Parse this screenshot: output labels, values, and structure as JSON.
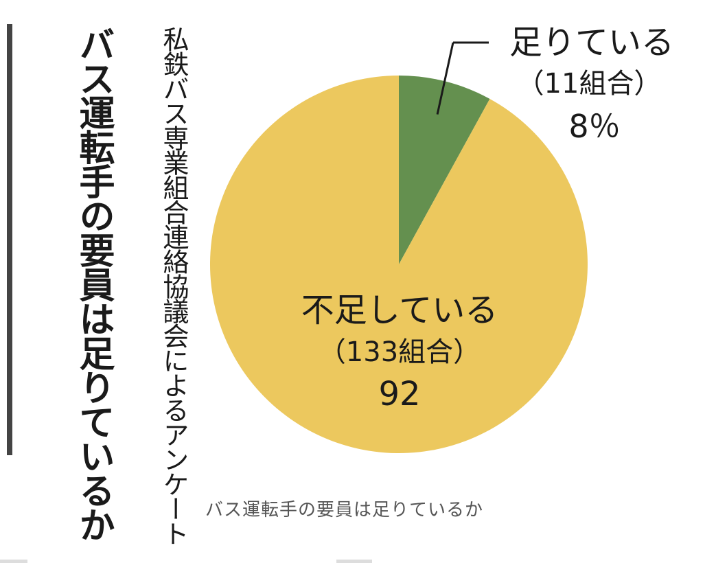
{
  "figure": {
    "title_vertical": "バス運転手の要員は足りているか",
    "source_vertical": "私鉄バス専業組合連絡協議会によるアンケート"
  },
  "caption": "バス運転手の要員は足りているか",
  "colors": {
    "sufficient": "#64904f",
    "insufficient": "#ecc85e",
    "bar": "#444444",
    "leader": "#1a1a1a"
  },
  "chart_data": {
    "type": "pie",
    "unit": "%",
    "slices": [
      {
        "label": "足りている",
        "count_text": "（11組合）",
        "count": 11,
        "value": 8,
        "value_text": "8％"
      },
      {
        "label": "不足している",
        "count_text": "（133組合）",
        "count": 133,
        "value": 92,
        "value_text": "92"
      }
    ]
  }
}
